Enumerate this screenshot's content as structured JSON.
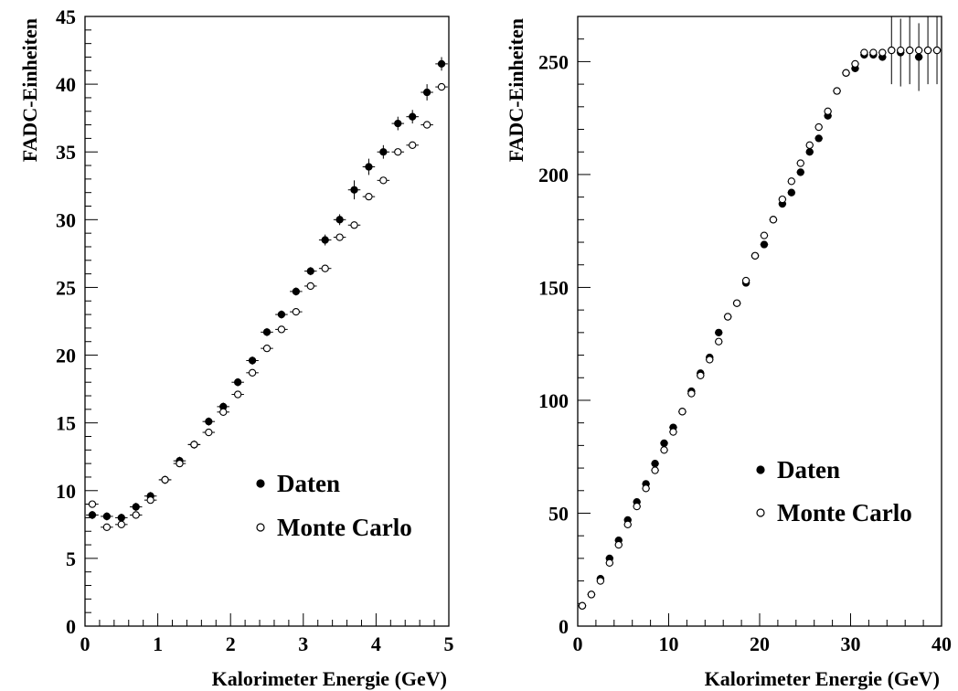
{
  "chart_data": [
    {
      "type": "scatter",
      "xlabel": "Kalorimeter Energie (GeV)",
      "ylabel": "FADC-Einheiten",
      "xlim": [
        0,
        5
      ],
      "ylim": [
        0,
        45
      ],
      "xticks": [
        "0",
        "1",
        "2",
        "3",
        "4",
        "5"
      ],
      "yticks": [
        "0",
        "5",
        "10",
        "15",
        "20",
        "25",
        "30",
        "35",
        "40",
        "45"
      ],
      "legend_position": "bottom-right",
      "series": [
        {
          "name": "Daten",
          "marker": "filled-circle",
          "x": [
            0.1,
            0.3,
            0.5,
            0.7,
            0.9,
            1.1,
            1.3,
            1.5,
            1.7,
            1.9,
            2.1,
            2.3,
            2.5,
            2.7,
            2.9,
            3.1,
            3.3,
            3.5,
            3.7,
            3.9,
            4.1,
            4.3,
            4.5,
            4.7,
            4.9
          ],
          "y": [
            8.2,
            8.1,
            8.0,
            8.8,
            9.6,
            10.8,
            12.2,
            13.4,
            15.1,
            16.2,
            18.0,
            19.6,
            21.7,
            23.0,
            24.7,
            26.2,
            28.5,
            30.0,
            32.2,
            33.9,
            35.0,
            37.1,
            37.6,
            39.4,
            41.5
          ],
          "yerr": [
            0.3,
            0.3,
            0.3,
            0.3,
            0.3,
            0.3,
            0.3,
            0.3,
            0.3,
            0.3,
            0.3,
            0.3,
            0.3,
            0.3,
            0.3,
            0.3,
            0.4,
            0.4,
            0.7,
            0.6,
            0.5,
            0.5,
            0.5,
            0.6,
            0.5
          ]
        },
        {
          "name": "Monte Carlo",
          "marker": "open-circle",
          "x": [
            0.1,
            0.3,
            0.5,
            0.7,
            0.9,
            1.1,
            1.3,
            1.5,
            1.7,
            1.9,
            2.1,
            2.3,
            2.5,
            2.7,
            2.9,
            3.1,
            3.3,
            3.5,
            3.7,
            3.9,
            4.1,
            4.3,
            4.5,
            4.7,
            4.9
          ],
          "y": [
            9.0,
            7.3,
            7.5,
            8.2,
            9.3,
            10.8,
            12.0,
            13.4,
            14.3,
            15.8,
            17.1,
            18.7,
            20.5,
            21.9,
            23.2,
            25.1,
            26.4,
            28.7,
            29.6,
            31.7,
            32.9,
            35.0,
            35.5,
            37.0,
            39.8
          ],
          "yerr": [
            0.2,
            0.2,
            0.2,
            0.2,
            0.2,
            0.2,
            0.2,
            0.2,
            0.2,
            0.2,
            0.2,
            0.2,
            0.2,
            0.2,
            0.2,
            0.2,
            0.2,
            0.2,
            0.2,
            0.2,
            0.2,
            0.2,
            0.2,
            0.2,
            0.2
          ]
        }
      ]
    },
    {
      "type": "scatter",
      "xlabel": "Kalorimeter Energie (GeV)",
      "ylabel": "FADC-Einheiten",
      "xlim": [
        0,
        40
      ],
      "ylim": [
        0,
        270
      ],
      "xticks": [
        "0",
        "10",
        "20",
        "30",
        "40"
      ],
      "yticks": [
        "0",
        "50",
        "100",
        "150",
        "200",
        "250"
      ],
      "legend_position": "bottom-right",
      "series": [
        {
          "name": "Daten",
          "marker": "filled-circle",
          "x": [
            0.5,
            1.5,
            2.5,
            3.5,
            4.5,
            5.5,
            6.5,
            7.5,
            8.5,
            9.5,
            10.5,
            11.5,
            12.5,
            13.5,
            14.5,
            15.5,
            16.5,
            17.5,
            18.5,
            19.5,
            20.5,
            21.5,
            22.5,
            23.5,
            24.5,
            25.5,
            26.5,
            27.5,
            28.5,
            29.5,
            30.5,
            31.5,
            32.5,
            33.5,
            34.5,
            35.5,
            36.5,
            37.5,
            38.5,
            39.5
          ],
          "y": [
            9,
            14,
            21,
            30,
            38,
            47,
            55,
            63,
            72,
            81,
            88,
            95,
            104,
            112,
            119,
            130,
            137,
            143,
            152,
            164,
            169,
            180,
            187,
            192,
            201,
            210,
            216,
            226,
            237,
            245,
            247,
            253,
            253,
            252,
            255,
            254,
            255,
            252,
            255,
            255
          ],
          "yerr": [
            1,
            1,
            1,
            1,
            1,
            1,
            1,
            1,
            1,
            1,
            1,
            1,
            1,
            1,
            1,
            1,
            1,
            1,
            1,
            1,
            1,
            1,
            1,
            1,
            1,
            1,
            1,
            1,
            1,
            1,
            1,
            1,
            1,
            1,
            15,
            15,
            15,
            15,
            15,
            15
          ]
        },
        {
          "name": "Monte Carlo",
          "marker": "open-circle",
          "x": [
            0.5,
            1.5,
            2.5,
            3.5,
            4.5,
            5.5,
            6.5,
            7.5,
            8.5,
            9.5,
            10.5,
            11.5,
            12.5,
            13.5,
            14.5,
            15.5,
            16.5,
            17.5,
            18.5,
            19.5,
            20.5,
            21.5,
            22.5,
            23.5,
            24.5,
            25.5,
            26.5,
            27.5,
            28.5,
            29.5,
            30.5,
            31.5,
            32.5,
            33.5,
            34.5,
            35.5,
            36.5,
            37.5,
            38.5,
            39.5
          ],
          "y": [
            9,
            14,
            20,
            28,
            36,
            45,
            53,
            61,
            69,
            78,
            86,
            95,
            103,
            111,
            118,
            126,
            137,
            143,
            153,
            164,
            173,
            180,
            189,
            197,
            205,
            213,
            221,
            228,
            237,
            245,
            249,
            254,
            254,
            254,
            255,
            255,
            255,
            255,
            255,
            255
          ],
          "yerr": [
            0.5,
            0.5,
            0.5,
            0.5,
            0.5,
            0.5,
            0.5,
            0.5,
            0.5,
            0.5,
            0.5,
            0.5,
            0.5,
            0.5,
            0.5,
            0.5,
            0.5,
            0.5,
            0.5,
            0.5,
            0.5,
            0.5,
            0.5,
            0.5,
            0.5,
            0.5,
            0.5,
            0.5,
            0.5,
            0.5,
            0.5,
            0.5,
            0.5,
            0.5,
            0.5,
            0.5,
            0.5,
            0.5,
            0.5,
            0.5
          ]
        }
      ]
    }
  ]
}
